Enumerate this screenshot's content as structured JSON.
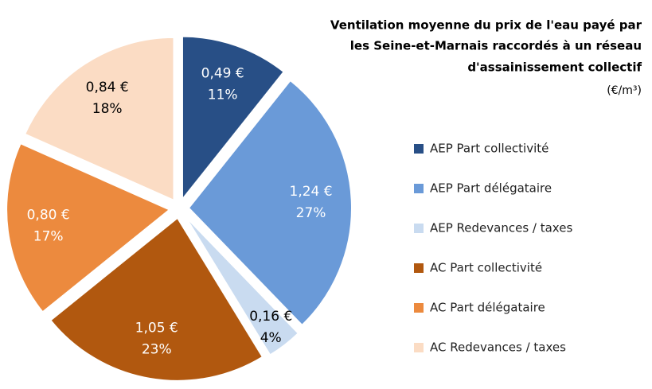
{
  "chart_data": {
    "type": "pie",
    "title_lines": [
      "Ventilation moyenne du prix de l'eau payé par",
      "les Seine-et-Marnais raccordés à un réseau",
      "d'assainissement collectif"
    ],
    "subtitle": "(€/m³)",
    "categories": [
      "AEP Part collectivité",
      "AEP Part délégataire",
      "AEP Redevances / taxes",
      "AC Part collectivité",
      "AC Part délégataire",
      "AC Redevances / taxes"
    ],
    "values": [
      0.49,
      1.24,
      0.16,
      1.05,
      0.8,
      0.84
    ],
    "value_labels": [
      "0,49 €",
      "1,24 €",
      "0,16 €",
      "1,05 €",
      "0,80 €",
      "0,84 €"
    ],
    "percent_values": [
      11,
      27,
      4,
      23,
      17,
      18
    ],
    "percent_labels": [
      "11%",
      "27%",
      "4%",
      "23%",
      "17%",
      "18%"
    ],
    "colors": [
      "#284f86",
      "#6a9ad8",
      "#c9dbf0",
      "#b1580f",
      "#ec8a3e",
      "#fbdcc4"
    ],
    "label_colors": [
      "#ffffff",
      "#ffffff",
      "#000000",
      "#ffffff",
      "#ffffff",
      "#000000"
    ],
    "legend": "right"
  }
}
